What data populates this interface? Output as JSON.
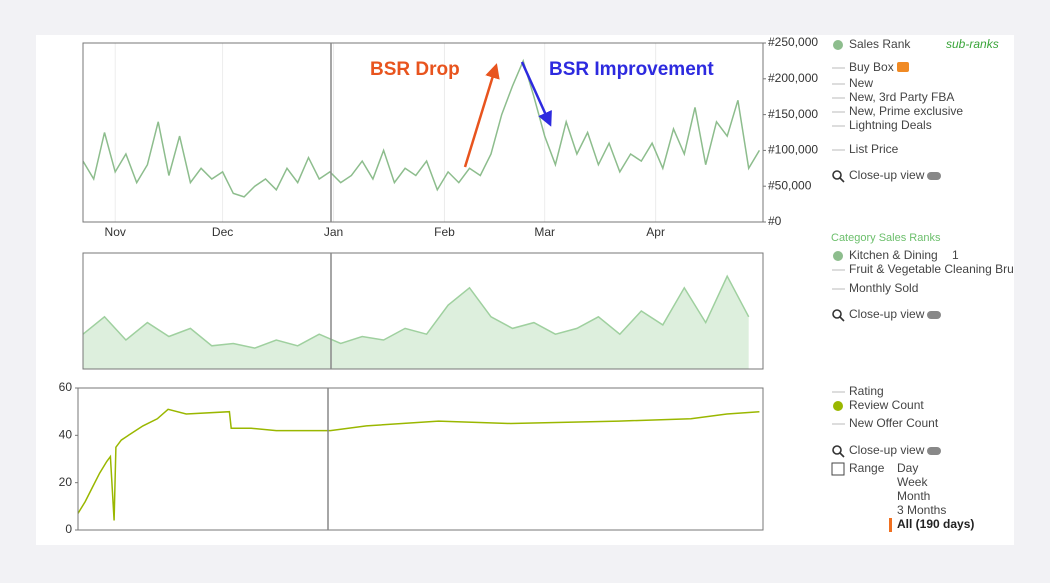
{
  "charts": [
    {
      "type": "line",
      "ylim": [
        0,
        250000
      ],
      "yticks": [
        {
          "value": 0,
          "label": "#0"
        },
        {
          "value": 50000,
          "label": "#50,000"
        },
        {
          "value": 100000,
          "label": "#100,000"
        },
        {
          "value": 150000,
          "label": "#150,000"
        },
        {
          "value": 200000,
          "label": "#200,000"
        },
        {
          "value": 250000,
          "label": "#250,000"
        }
      ],
      "xlim": [
        0,
        190
      ],
      "xticks": [
        {
          "value": 9,
          "label": "Nov"
        },
        {
          "value": 39,
          "label": "Dec"
        },
        {
          "value": 70,
          "label": "Jan"
        },
        {
          "value": 101,
          "label": "Feb"
        },
        {
          "value": 129,
          "label": "Mar"
        },
        {
          "value": 160,
          "label": "Apr"
        }
      ],
      "grid": true,
      "annotations": [
        {
          "text": "BSR Drop",
          "color": "#e8541e"
        },
        {
          "text": "BSR Improvement",
          "color": "#2d2adf"
        }
      ],
      "x": [
        0,
        3,
        6,
        9,
        12,
        15,
        18,
        21,
        24,
        27,
        30,
        33,
        36,
        39,
        42,
        45,
        48,
        51,
        54,
        57,
        60,
        63,
        66,
        69,
        72,
        75,
        78,
        81,
        84,
        87,
        90,
        93,
        96,
        99,
        102,
        105,
        108,
        111,
        114,
        117,
        120,
        123,
        126,
        129,
        132,
        135,
        138,
        141,
        144,
        147,
        150,
        153,
        156,
        159,
        162,
        165,
        168,
        171,
        174,
        177,
        180,
        183,
        186,
        189
      ],
      "series": [
        {
          "name": "Sales Rank",
          "color": "#8dbd8d",
          "values": [
            85000,
            60000,
            125000,
            70000,
            95000,
            55000,
            80000,
            140000,
            65000,
            120000,
            55000,
            75000,
            60000,
            70000,
            40000,
            35000,
            50000,
            60000,
            45000,
            75000,
            55000,
            90000,
            60000,
            70000,
            55000,
            65000,
            85000,
            60000,
            100000,
            55000,
            75000,
            65000,
            85000,
            45000,
            70000,
            55000,
            75000,
            65000,
            95000,
            150000,
            190000,
            225000,
            175000,
            120000,
            80000,
            140000,
            95000,
            125000,
            80000,
            110000,
            70000,
            95000,
            85000,
            110000,
            75000,
            130000,
            95000,
            160000,
            80000,
            140000,
            120000,
            170000,
            75000,
            100000
          ]
        }
      ]
    },
    {
      "type": "area",
      "ylim": [
        0,
        100
      ],
      "xlim": [
        0,
        190
      ],
      "x": [
        0,
        6,
        12,
        18,
        24,
        30,
        36,
        42,
        48,
        54,
        60,
        66,
        72,
        78,
        84,
        90,
        96,
        102,
        108,
        114,
        120,
        126,
        132,
        138,
        144,
        150,
        156,
        162,
        168,
        174,
        180,
        186
      ],
      "series": [
        {
          "name": "Kitchen & Dining",
          "color": "#9fd09f",
          "values": [
            30,
            45,
            25,
            40,
            28,
            35,
            20,
            22,
            18,
            25,
            20,
            30,
            22,
            28,
            25,
            35,
            30,
            55,
            70,
            45,
            35,
            40,
            30,
            35,
            45,
            30,
            50,
            38,
            70,
            40,
            80,
            45
          ]
        }
      ]
    },
    {
      "type": "line",
      "ylim": [
        0,
        60
      ],
      "yticks": [
        0,
        20,
        40,
        60
      ],
      "xlim": [
        0,
        190
      ],
      "x": [
        0,
        2,
        4,
        6,
        8,
        9,
        10,
        10.5,
        12,
        14,
        18,
        22,
        25,
        30,
        42,
        42.5,
        48,
        55,
        65,
        70,
        80,
        100,
        120,
        150,
        170,
        180,
        189
      ],
      "series": [
        {
          "name": "Review Count",
          "color": "#9ab700",
          "values": [
            7,
            12,
            18,
            24,
            29,
            31,
            4,
            35,
            38,
            40,
            44,
            47,
            51,
            49,
            50,
            43,
            43,
            42,
            42,
            42,
            44,
            46,
            45,
            46,
            47,
            49,
            50
          ]
        }
      ]
    }
  ],
  "legend_panel": {
    "bsr": [
      "sub-ranks",
      "Buy Box",
      "New",
      "New, 3rd Party FBA",
      "New, Prime exclusive",
      "Lightning Deals",
      "List Price",
      "Close-up view"
    ],
    "category": {
      "heading": "Category Sales Ranks",
      "count": "1",
      "items": [
        "Fruit & Vegetable Cleaning Brush",
        "Monthly Sold",
        "Close-up view"
      ]
    },
    "reviews": [
      "Rating",
      "New Offer Count",
      "Close-up view"
    ],
    "range": {
      "label": "Range",
      "options": [
        "Day",
        "Week",
        "Month",
        "3 Months",
        "All (190 days)"
      ]
    }
  }
}
